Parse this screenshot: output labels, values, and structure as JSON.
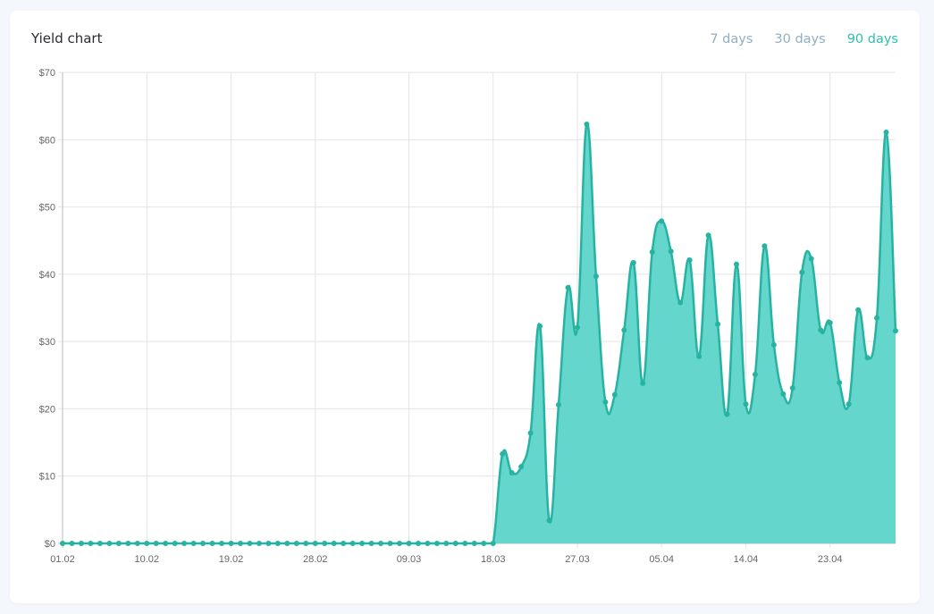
{
  "card": {
    "title": "Yield chart"
  },
  "ranges": [
    {
      "label": "7 days",
      "active": false
    },
    {
      "label": "30 days",
      "active": false
    },
    {
      "label": "90 days",
      "active": true
    }
  ],
  "colors": {
    "line": "#26b3a2",
    "fill": "#64d6cc",
    "grid": "#e4e4e4",
    "accent": "#2ec0ad"
  },
  "chart_data": {
    "type": "area",
    "title": "Yield chart",
    "ylim": [
      0,
      70
    ],
    "y_ticks": [
      "$0",
      "$10",
      "$20",
      "$30",
      "$40",
      "$50",
      "$60",
      "$70"
    ],
    "x_ticks": [
      "01.02",
      "10.02",
      "19.02",
      "28.02",
      "09.03",
      "18.03",
      "27.03",
      "05.04",
      "14.04",
      "23.04"
    ],
    "grid": true,
    "x": [
      "01.02",
      "02.02",
      "03.02",
      "04.02",
      "05.02",
      "06.02",
      "07.02",
      "08.02",
      "09.02",
      "10.02",
      "11.02",
      "12.02",
      "13.02",
      "14.02",
      "15.02",
      "16.02",
      "17.02",
      "18.02",
      "19.02",
      "20.02",
      "21.02",
      "22.02",
      "23.02",
      "24.02",
      "25.02",
      "26.02",
      "27.02",
      "28.02",
      "29.02",
      "01.03",
      "02.03",
      "03.03",
      "04.03",
      "05.03",
      "06.03",
      "07.03",
      "08.03",
      "09.03",
      "10.03",
      "11.03",
      "12.03",
      "13.03",
      "14.03",
      "15.03",
      "16.03",
      "17.03",
      "18.03",
      "19.03",
      "20.03",
      "21.03",
      "22.03",
      "23.03",
      "24.03",
      "25.03",
      "26.03",
      "27.03",
      "28.03",
      "29.03",
      "30.03",
      "31.03",
      "01.04",
      "02.04",
      "03.04",
      "04.04",
      "05.04",
      "06.04",
      "07.04",
      "08.04",
      "09.04",
      "10.04",
      "11.04",
      "12.04",
      "13.04",
      "14.04",
      "15.04",
      "16.04",
      "17.04",
      "18.04",
      "19.04",
      "20.04",
      "21.04",
      "22.04",
      "23.04",
      "24.04",
      "25.04",
      "26.04",
      "27.04",
      "28.04",
      "29.04",
      "30.04"
    ],
    "values": [
      0,
      0,
      0,
      0,
      0,
      0,
      0,
      0,
      0,
      0,
      0,
      0,
      0,
      0,
      0,
      0,
      0,
      0,
      0,
      0,
      0,
      0,
      0,
      0,
      0,
      0,
      0,
      0,
      0,
      0,
      0,
      0,
      0,
      0,
      0,
      0,
      0,
      0,
      0,
      0,
      0,
      0,
      0,
      0,
      0,
      0,
      0,
      13.3,
      10.5,
      11.4,
      16.4,
      32.3,
      3.4,
      20.6,
      38.0,
      32.1,
      62.3,
      39.7,
      21.0,
      22.1,
      31.7,
      41.7,
      23.8,
      43.3,
      47.9,
      43.4,
      35.8,
      42.1,
      27.8,
      45.8,
      32.6,
      19.2,
      41.5,
      20.7,
      25.1,
      44.2,
      29.5,
      22.2,
      23.1,
      40.3,
      42.3,
      31.7,
      32.8,
      23.9,
      20.7,
      34.7,
      27.6,
      33.5,
      61.1,
      31.6
    ]
  }
}
